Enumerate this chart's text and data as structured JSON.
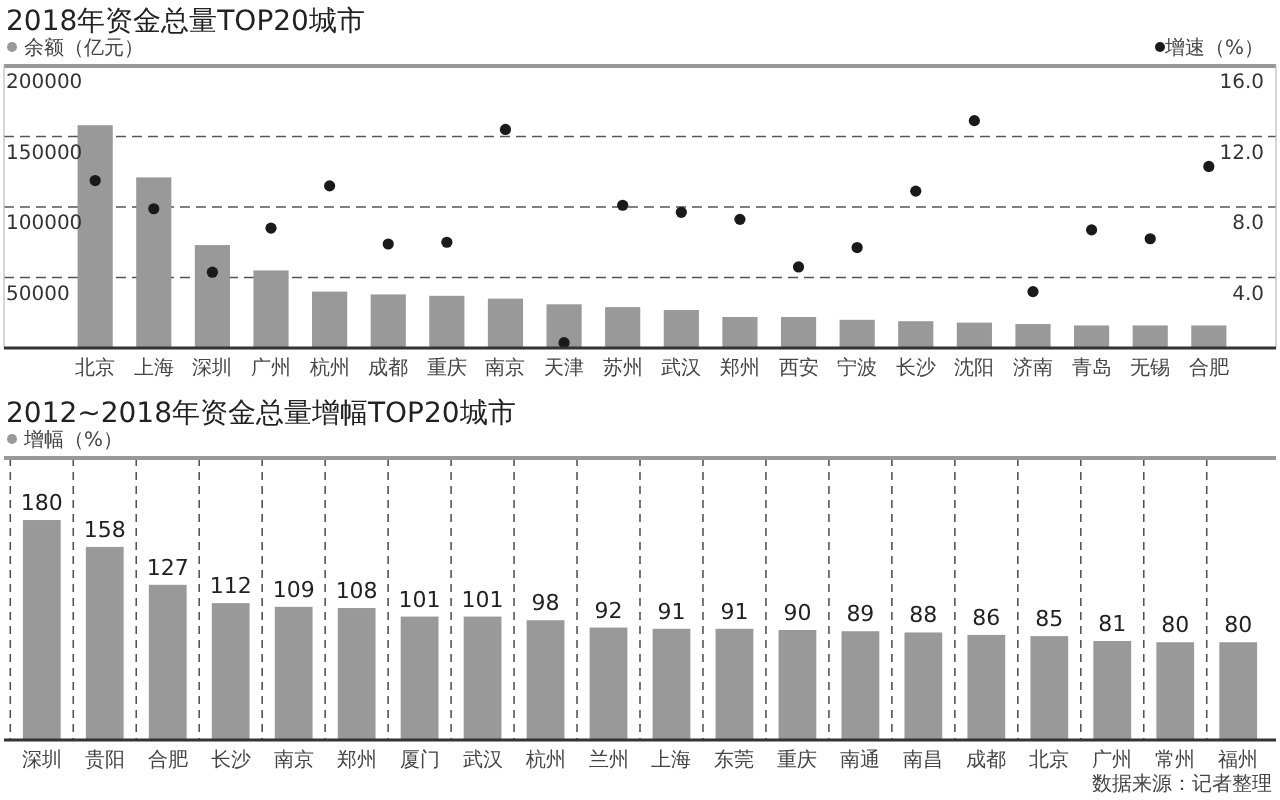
{
  "chart_data": [
    {
      "type": "bar",
      "title": "2018年资金总量TOP20城市",
      "categories": [
        "北京",
        "上海",
        "深圳",
        "广州",
        "杭州",
        "成都",
        "重庆",
        "南京",
        "天津",
        "苏州",
        "武汉",
        "郑州",
        "西安",
        "宁波",
        "长沙",
        "沈阳",
        "济南",
        "青岛",
        "无锡",
        "合肥"
      ],
      "series": [
        {
          "name": "余额（亿元）",
          "color": "#999999",
          "values": [
            158000,
            121000,
            73000,
            55000,
            40000,
            38000,
            37000,
            35000,
            31000,
            29000,
            27000,
            22000,
            22000,
            20000,
            19000,
            18000,
            17000,
            16000,
            16000,
            16000
          ]
        },
        {
          "name": "增速（%）",
          "type": "scatter",
          "axis": "y2",
          "color": "#1a1a1a",
          "values": [
            9.5,
            7.9,
            4.3,
            6.8,
            9.2,
            5.9,
            6.0,
            12.4,
            0.3,
            8.1,
            7.7,
            7.3,
            4.6,
            5.7,
            8.9,
            12.9,
            3.2,
            6.7,
            6.2,
            10.3
          ]
        }
      ],
      "ylim": [
        0,
        200000
      ],
      "yticks": [
        50000,
        100000,
        150000,
        200000
      ],
      "y2lim": [
        0,
        16
      ],
      "y2ticks": [
        {
          "value": 4,
          "label": "4.0"
        },
        {
          "value": 8,
          "label": "8.0"
        },
        {
          "value": 12,
          "label": "12.0"
        },
        {
          "value": 16,
          "label": "16.0"
        }
      ],
      "grid": "y",
      "legend": "top",
      "marker": "circle"
    },
    {
      "type": "bar",
      "title": "2012~2018年资金总量增幅TOP20城市",
      "categories": [
        "深圳",
        "贵阳",
        "合肥",
        "长沙",
        "南京",
        "郑州",
        "厦门",
        "武汉",
        "杭州",
        "兰州",
        "上海",
        "东莞",
        "重庆",
        "南通",
        "南昌",
        "成都",
        "北京",
        "广州",
        "常州",
        "福州"
      ],
      "series": [
        {
          "name": "增幅（%）",
          "color": "#999999",
          "values": [
            180,
            158,
            127,
            112,
            109,
            108,
            101,
            101,
            98,
            92,
            91,
            91,
            90,
            89,
            88,
            86,
            85,
            81,
            80,
            80
          ]
        }
      ],
      "data_labels": true,
      "grid": "x",
      "legend": "top",
      "annotations": [
        "数据来源：记者整理"
      ]
    }
  ]
}
